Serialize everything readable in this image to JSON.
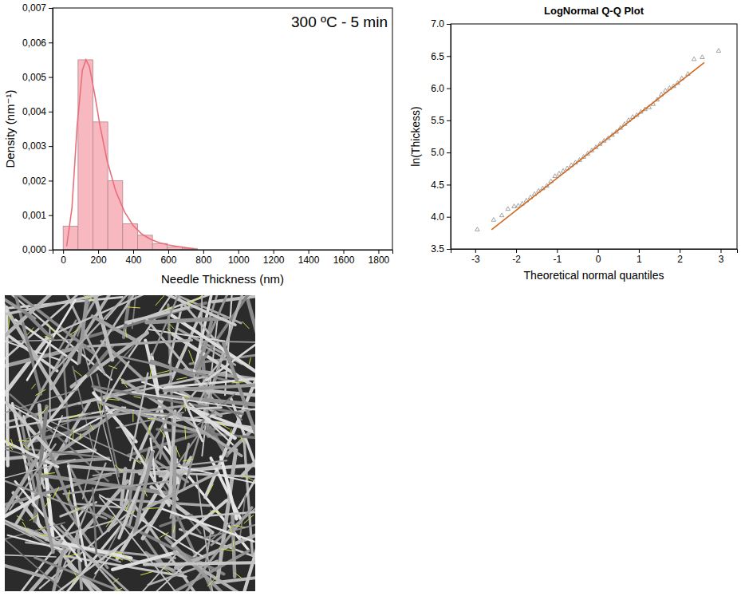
{
  "chart_data": [
    {
      "type": "histogram",
      "annotation": "300 ºC - 5 min",
      "x_label": "Needle Thickness (nm)",
      "y_label": "Density (nm⁻¹)",
      "bins": [
        0,
        85,
        170,
        255,
        340,
        425,
        510,
        595,
        680,
        765
      ],
      "values": [
        0.00068,
        0.0055,
        0.0037,
        0.002,
        0.00075,
        0.00042,
        0.00018,
        8e-05,
        4e-05
      ],
      "color": "#f7b9bf",
      "xlim": [
        -60,
        1880
      ],
      "xticks": [
        0,
        200,
        400,
        600,
        800,
        1000,
        1200,
        1400,
        1600,
        1800
      ],
      "ylim": [
        0,
        0.007
      ],
      "yticks": [
        {
          "value": 0,
          "label": "0,000"
        },
        {
          "value": 0.001,
          "label": "0,001"
        },
        {
          "value": 0.002,
          "label": "0,002"
        },
        {
          "value": 0.003,
          "label": "0,003"
        },
        {
          "value": 0.004,
          "label": "0,004"
        },
        {
          "value": 0.005,
          "label": "0,005"
        },
        {
          "value": 0.006,
          "label": "0,006"
        },
        {
          "value": 0.007,
          "label": "0,007"
        }
      ],
      "series": [
        {
          "type": "line",
          "color": "#e8707e",
          "x": [
            20,
            50,
            80,
            110,
            130,
            150,
            180,
            210,
            250,
            300,
            350,
            400,
            450,
            500,
            550,
            600,
            650,
            700,
            750
          ],
          "values": [
            0.0001,
            0.0012,
            0.0036,
            0.0052,
            0.0055,
            0.0053,
            0.0045,
            0.0036,
            0.0026,
            0.0017,
            0.0011,
            0.0007,
            0.00045,
            0.0003,
            0.0002,
            0.00014,
            0.0001,
            6e-05,
            3e-05
          ]
        }
      ]
    },
    {
      "type": "scatter",
      "title": "LogNormal Q-Q Plot",
      "x_label": "Theoretical normal quantiles",
      "y_label": "ln(Thickess)",
      "xlim": [
        -3.6,
        3.4
      ],
      "xticks": [
        -3,
        -2,
        -1,
        0,
        1,
        2,
        3
      ],
      "ylim": [
        3.5,
        7
      ],
      "yticks": [
        3.5,
        {
          "value": 4,
          "label": "4.0"
        },
        4.5,
        {
          "value": 5,
          "label": "5.0"
        },
        5.5,
        {
          "value": 6,
          "label": "6.0"
        },
        6.5,
        {
          "value": 7,
          "label": "7.0"
        }
      ],
      "series": [
        {
          "type": "scatter",
          "marker": "triangle",
          "color": "#8c8c8c",
          "x": [
            -2.95,
            -2.55,
            -2.35,
            -2.2,
            -2.05,
            -1.95,
            -1.85,
            -1.75,
            -1.65,
            -1.55,
            -1.45,
            -1.35,
            -1.25,
            -1.15,
            -1.05,
            -0.95,
            -0.85,
            -0.75,
            -0.65,
            -0.55,
            -0.45,
            -0.35,
            -0.25,
            -0.15,
            -0.05,
            0.05,
            0.15,
            0.25,
            0.35,
            0.45,
            0.55,
            0.65,
            0.75,
            0.85,
            0.95,
            1.05,
            1.15,
            1.25,
            1.35,
            1.45,
            1.55,
            1.65,
            1.75,
            1.85,
            1.95,
            2.05,
            2.2,
            2.35,
            2.55,
            2.95
          ],
          "values": [
            3.8,
            3.95,
            4.02,
            4.12,
            4.16,
            4.17,
            4.2,
            4.25,
            4.3,
            4.35,
            4.4,
            4.44,
            4.48,
            4.55,
            4.63,
            4.67,
            4.71,
            4.75,
            4.8,
            4.84,
            4.88,
            4.93,
            4.98,
            5.03,
            5.08,
            5.13,
            5.18,
            5.22,
            5.27,
            5.32,
            5.38,
            5.44,
            5.5,
            5.55,
            5.58,
            5.63,
            5.67,
            5.7,
            5.75,
            5.82,
            5.9,
            5.96,
            6.0,
            6.03,
            6.08,
            6.15,
            6.22,
            6.45,
            6.48,
            6.58
          ]
        },
        {
          "type": "line",
          "color": "#d2691e",
          "x": [
            -2.6,
            2.6
          ],
          "values": [
            3.8,
            6.4
          ]
        }
      ]
    },
    {
      "type": "image"
    }
  ]
}
